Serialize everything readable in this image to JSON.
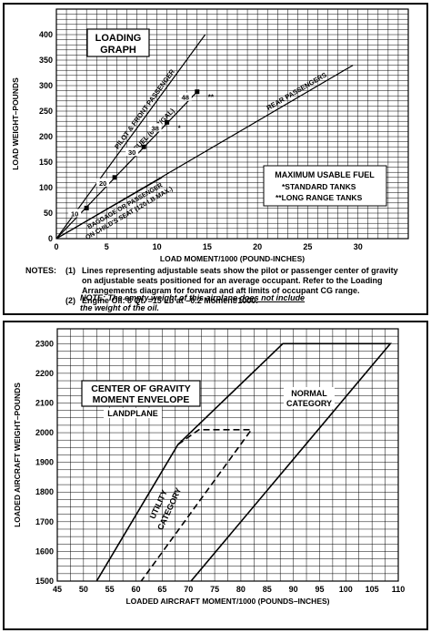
{
  "chart_data": [
    {
      "type": "line",
      "title": "LOADING GRAPH",
      "xlabel": "LOAD MOMENT/1000 (POUND-INCHES)",
      "ylabel": "LOAD WEIGHT–POUNDS",
      "xlim": [
        0,
        35
      ],
      "ylim": [
        0,
        450
      ],
      "x_ticks": [
        "0",
        "5",
        "10",
        "15",
        "20",
        "25",
        "30"
      ],
      "y_ticks": [
        "0",
        "50",
        "100",
        "150",
        "200",
        "250",
        "300",
        "350",
        "400"
      ],
      "grid": true,
      "series": [
        {
          "name": "PILOT & FRONT PASSENGER",
          "x": [
            0,
            14.8
          ],
          "y": [
            0,
            400
          ]
        },
        {
          "name": "FUEL (6 LB/GAL)",
          "x": [
            0,
            14.0
          ],
          "y": [
            0,
            288
          ]
        },
        {
          "name": "BAGGAGE OR PASSENGER ON CHILD'S SEAT (120 LB MAX.)",
          "x": [
            0,
            10.5
          ],
          "y": [
            0,
            120
          ]
        },
        {
          "name": "REAR PASSENGERS",
          "x": [
            0,
            29.5
          ],
          "y": [
            0,
            340
          ]
        }
      ],
      "fuel_markers": [
        {
          "label": "10",
          "x": 3.0,
          "y": 60
        },
        {
          "label": "20",
          "x": 5.8,
          "y": 120
        },
        {
          "label": "30",
          "x": 8.7,
          "y": 180
        },
        {
          "label": "38",
          "x": 11.0,
          "y": 228,
          "mark": "*"
        },
        {
          "label": "48",
          "x": 14.0,
          "y": 288,
          "mark": "**"
        }
      ],
      "legend": {
        "title": "MAXIMUM USABLE FUEL",
        "items": [
          "*STANDARD TANKS",
          "**LONG RANGE TANKS"
        ]
      }
    },
    {
      "type": "line",
      "title": "CENTER OF GRAVITY MOMENT ENVELOPE",
      "subtitle": "LANDPLANE",
      "xlabel": "LOADED AIRCRAFT MOMENT/1000 (POUNDS–INCHES)",
      "ylabel": "LOADED AIRCRAFT WEIGHT–POUNDS",
      "xlim": [
        45,
        110
      ],
      "ylim": [
        1500,
        2350
      ],
      "x_ticks": [
        "45",
        "50",
        "55",
        "60",
        "65",
        "70",
        "75",
        "80",
        "85",
        "90",
        "95",
        "100",
        "105",
        "110"
      ],
      "y_ticks": [
        "1500",
        "1600",
        "1700",
        "1800",
        "1900",
        "2000",
        "2100",
        "2200",
        "2300"
      ],
      "grid": true,
      "series": [
        {
          "name": "NORMAL CATEGORY",
          "style": "solid",
          "x": [
            52.5,
            68.0,
            88.0,
            108.5,
            70.5
          ],
          "y": [
            1500,
            1960,
            2300,
            2300,
            1500
          ]
        },
        {
          "name": "UTILITY CATEGORY",
          "style": "dashed",
          "x": [
            68.0,
            72.0,
            82.0,
            61.0
          ],
          "y": [
            1960,
            2010,
            2010,
            1500
          ]
        }
      ]
    }
  ],
  "notes": {
    "label": "NOTES:",
    "items": [
      {
        "num": "(1)",
        "text": "Lines representing adjustable seats show the pilot or passenger center of gravity on adjustable seats positioned for an average occupant. Refer to the Loading Arrangements diagram for forward and aft limits of occupant CG range."
      },
      {
        "num": "(2)",
        "text": "Engine Oil: 8 Qt. =15 Lb at –0.2 Moment/1000."
      }
    ],
    "note_label": "NOTE:",
    "note_text_a": "The empty weight of this airplane",
    "note_text_u": "does not include",
    "note_text_b": "the weight of the oil."
  }
}
